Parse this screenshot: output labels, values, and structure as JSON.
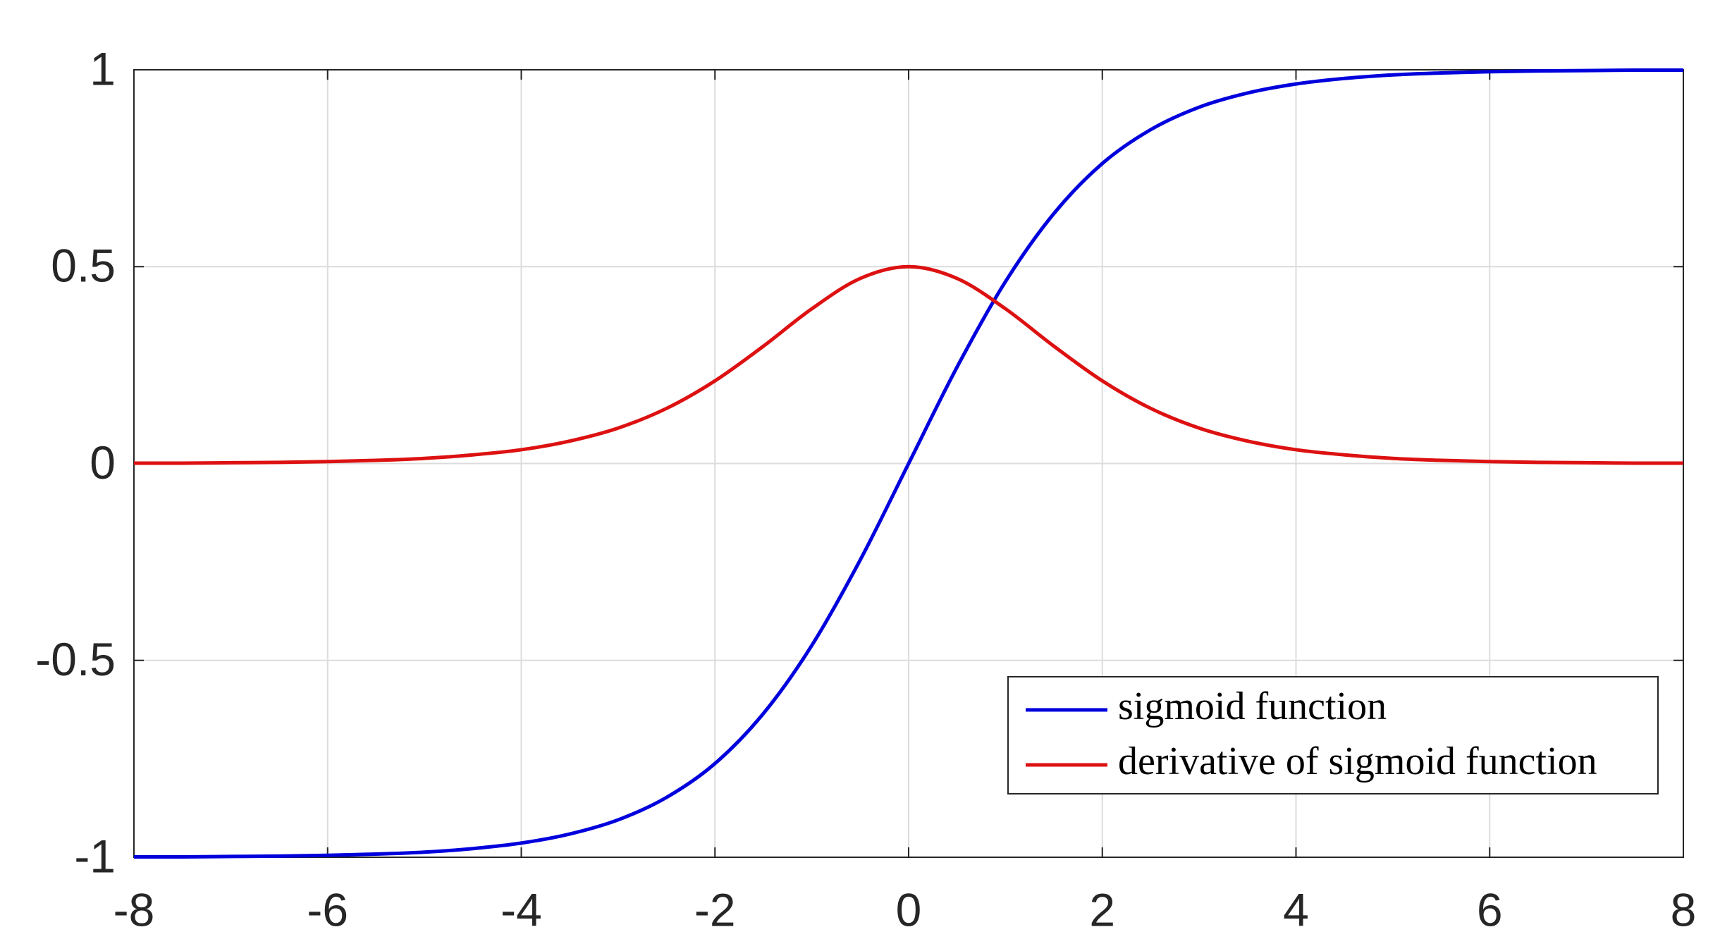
{
  "chart_data": {
    "type": "line",
    "x": [
      -8,
      -7.5,
      -7,
      -6.5,
      -6,
      -5.5,
      -5,
      -4.5,
      -4,
      -3.5,
      -3,
      -2.5,
      -2,
      -1.5,
      -1,
      -0.5,
      0,
      0.5,
      1,
      1.5,
      2,
      2.5,
      3,
      3.5,
      4,
      4.5,
      5,
      5.5,
      6,
      6.5,
      7,
      7.5,
      8
    ],
    "series": [
      {
        "name": "sigmoid function",
        "color": "#0000dd",
        "values": [
          -0.999,
          -0.999,
          -0.998,
          -0.997,
          -0.995,
          -0.992,
          -0.987,
          -0.978,
          -0.964,
          -0.941,
          -0.905,
          -0.848,
          -0.762,
          -0.635,
          -0.462,
          -0.245,
          0,
          0.245,
          0.462,
          0.635,
          0.762,
          0.848,
          0.905,
          0.941,
          0.964,
          0.978,
          0.987,
          0.992,
          0.995,
          0.997,
          0.998,
          0.999,
          0.999
        ]
      },
      {
        "name": "derivative of sigmoid function",
        "color": "#dd1111",
        "values": [
          0.001,
          0.001,
          0.002,
          0.003,
          0.005,
          0.008,
          0.013,
          0.022,
          0.035,
          0.057,
          0.09,
          0.14,
          0.21,
          0.298,
          0.393,
          0.47,
          0.5,
          0.47,
          0.393,
          0.298,
          0.21,
          0.14,
          0.09,
          0.057,
          0.035,
          0.022,
          0.013,
          0.008,
          0.005,
          0.003,
          0.002,
          0.001,
          0.001
        ]
      }
    ],
    "xlim": [
      -8,
      8
    ],
    "xticks": [
      -8,
      -6,
      -4,
      -2,
      0,
      2,
      4,
      6,
      8
    ],
    "ylim": [
      -1,
      1
    ],
    "yticks": [
      -1,
      -0.5,
      0,
      0.5,
      1
    ],
    "grid": true,
    "legend": "southeast"
  }
}
